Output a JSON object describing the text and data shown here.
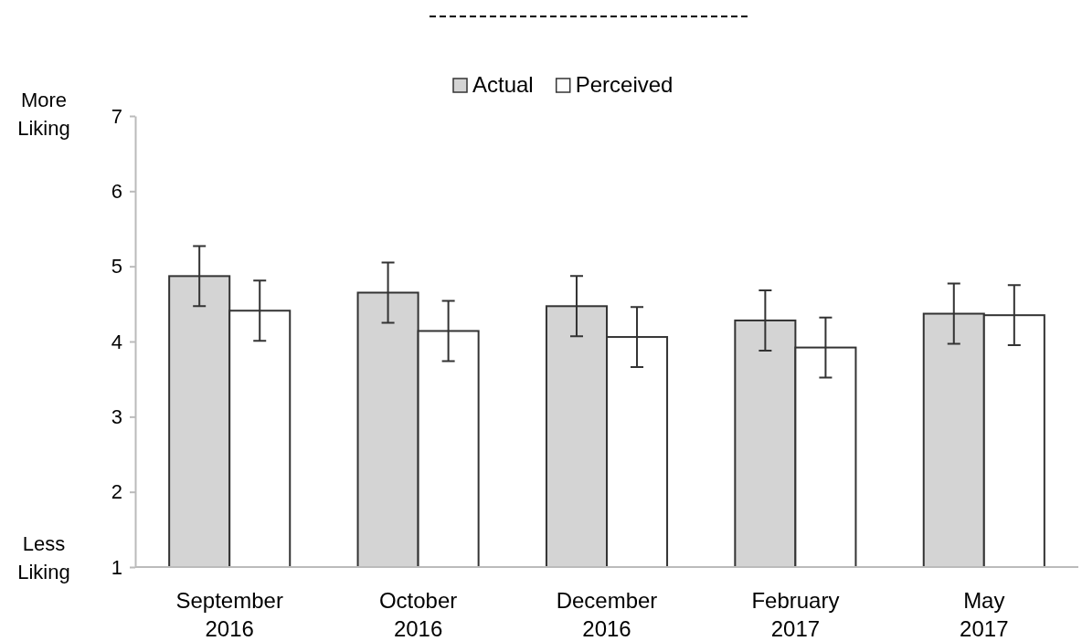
{
  "chart_data": {
    "type": "bar",
    "categories": [
      "September\n2016",
      "October\n2016",
      "December\n2016",
      "February\n2017",
      "May\n2017"
    ],
    "series": [
      {
        "name": "Actual",
        "color": "#d4d4d4",
        "values": [
          4.87,
          4.65,
          4.47,
          4.28,
          4.37
        ],
        "errors": [
          0.4,
          0.4,
          0.4,
          0.4,
          0.4
        ]
      },
      {
        "name": "Perceived",
        "color": "#ffffff",
        "values": [
          4.41,
          4.14,
          4.06,
          3.92,
          4.35
        ],
        "errors": [
          0.4,
          0.4,
          0.4,
          0.4,
          0.4
        ]
      }
    ],
    "ylim": [
      1,
      7
    ],
    "yticks": [
      1,
      2,
      3,
      4,
      5,
      6,
      7
    ],
    "grid": false,
    "legend": "top",
    "annotations": [
      "More\nLiking",
      "Less\nLiking"
    ]
  }
}
